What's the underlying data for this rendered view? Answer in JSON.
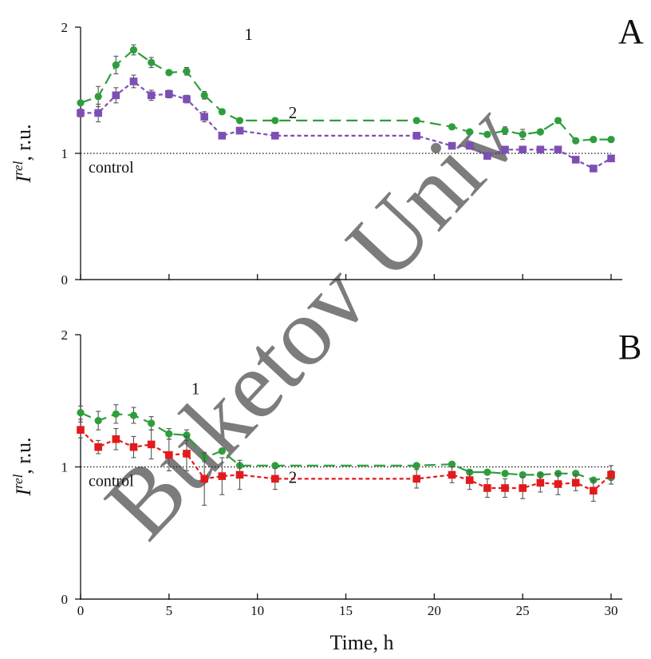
{
  "chart_data": [
    {
      "panel": "A",
      "type": "line",
      "x_axis_ticks_shown": false,
      "ylim": [
        0,
        2
      ],
      "xlim": [
        0,
        30
      ],
      "yticks": [
        "0",
        "1",
        "2"
      ],
      "ylabel": {
        "base": "I",
        "sup": "rel",
        "rest": ", r.u."
      },
      "control_value": 1,
      "control_label": "control",
      "series": [
        {
          "name": "1",
          "color": "#2e9e3c",
          "marker": "circle",
          "dash": "long",
          "x": [
            0,
            1,
            2,
            3,
            4,
            5,
            6,
            7,
            8,
            9,
            11,
            19,
            21,
            22,
            23,
            24,
            25,
            26,
            27,
            28,
            29,
            30
          ],
          "y": [
            1.4,
            1.45,
            1.7,
            1.82,
            1.72,
            1.64,
            1.65,
            1.46,
            1.33,
            1.26,
            1.26,
            1.26,
            1.21,
            1.17,
            1.15,
            1.18,
            1.15,
            1.17,
            1.26,
            1.1,
            1.11,
            1.11
          ],
          "err": [
            0.02,
            0.08,
            0.07,
            0.04,
            0.04,
            0.02,
            0.03,
            0.03,
            0.02,
            0.01,
            0.01,
            0.01,
            0.02,
            0.02,
            0.02,
            0.03,
            0.04,
            0.02,
            0.02,
            0.02,
            0.02,
            0.02
          ]
        },
        {
          "name": "2",
          "color": "#7d4fb5",
          "marker": "square",
          "dash": "short",
          "x": [
            0,
            1,
            2,
            3,
            4,
            5,
            6,
            7,
            8,
            9,
            11,
            19,
            21,
            22,
            23,
            24,
            25,
            26,
            27,
            28,
            29,
            30
          ],
          "y": [
            1.32,
            1.32,
            1.46,
            1.57,
            1.46,
            1.47,
            1.43,
            1.29,
            1.14,
            1.18,
            1.14,
            1.14,
            1.06,
            1.06,
            0.98,
            1.03,
            1.03,
            1.03,
            1.03,
            0.95,
            0.88,
            0.96
          ],
          "err": [
            0.03,
            0.07,
            0.06,
            0.05,
            0.04,
            0.03,
            0.03,
            0.04,
            0.02,
            0.02,
            0.02,
            0.01,
            0.01,
            0.01,
            0.02,
            0.02,
            0.02,
            0.02,
            0.02,
            0.02,
            0.02,
            0.02
          ]
        }
      ],
      "annotations": [
        {
          "text": "1",
          "x": 9.5,
          "y": 1.9
        },
        {
          "text": "2",
          "x": 12,
          "y": 1.28
        }
      ]
    },
    {
      "panel": "B",
      "type": "line",
      "ylim": [
        0,
        2
      ],
      "xlim": [
        0,
        30
      ],
      "yticks": [
        "0",
        "1",
        "2"
      ],
      "xticks": [
        "0",
        "5",
        "10",
        "15",
        "20",
        "25",
        "30"
      ],
      "xlabel": "Time, h",
      "ylabel": {
        "base": "I",
        "sup": "rel",
        "rest": ", r.u."
      },
      "control_value": 1,
      "control_label": "control",
      "series": [
        {
          "name": "1",
          "color": "#2e9e3c",
          "marker": "circle",
          "dash": "long",
          "x": [
            0,
            1,
            2,
            3,
            4,
            5,
            6,
            7,
            8,
            9,
            11,
            19,
            21,
            22,
            23,
            24,
            25,
            26,
            27,
            28,
            29,
            30
          ],
          "y": [
            1.41,
            1.35,
            1.4,
            1.39,
            1.33,
            1.25,
            1.24,
            1.07,
            1.12,
            1.01,
            1.01,
            1.01,
            1.02,
            0.96,
            0.96,
            0.95,
            0.94,
            0.94,
            0.95,
            0.95,
            0.9,
            0.92
          ],
          "err": [
            0.05,
            0.07,
            0.07,
            0.06,
            0.05,
            0.04,
            0.04,
            0.03,
            0.02,
            0.01,
            0.01,
            0.01,
            0.01,
            0.01,
            0.01,
            0.01,
            0.01,
            0.01,
            0.01,
            0.01,
            0.01,
            0.05
          ]
        },
        {
          "name": "2",
          "color": "#e31a1c",
          "marker": "square",
          "dash": "short",
          "x": [
            0,
            1,
            2,
            3,
            4,
            5,
            6,
            7,
            8,
            9,
            11,
            19,
            21,
            22,
            23,
            24,
            25,
            26,
            27,
            28,
            29,
            30
          ],
          "y": [
            1.28,
            1.15,
            1.21,
            1.15,
            1.17,
            1.09,
            1.1,
            0.91,
            0.93,
            0.94,
            0.91,
            0.91,
            0.94,
            0.9,
            0.84,
            0.84,
            0.84,
            0.88,
            0.87,
            0.88,
            0.82,
            0.94
          ],
          "err": [
            0.06,
            0.05,
            0.08,
            0.08,
            0.11,
            0.12,
            0.13,
            0.2,
            0.14,
            0.11,
            0.08,
            0.07,
            0.06,
            0.07,
            0.07,
            0.07,
            0.08,
            0.07,
            0.08,
            0.06,
            0.08,
            0.07
          ]
        }
      ],
      "annotations": [
        {
          "text": "1",
          "x": 6.5,
          "y": 1.55
        },
        {
          "text": "2",
          "x": 12,
          "y": 0.88
        }
      ]
    }
  ],
  "watermark": "Buketov Univ"
}
